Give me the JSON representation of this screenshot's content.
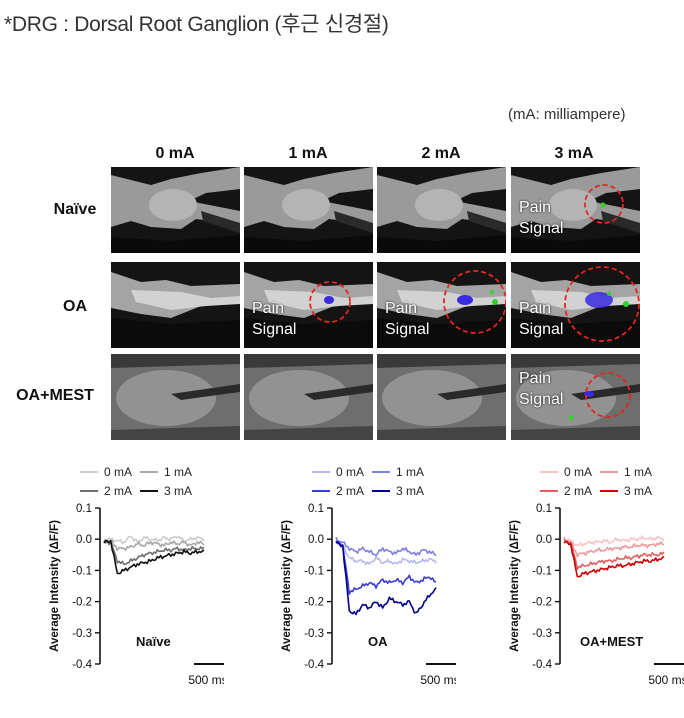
{
  "title": "*DRG : Dorsal Root Ganglion (후근 신경절)",
  "unit_note": "(mA: milliampere)",
  "columns": [
    "0 mA",
    "1 mA",
    "2 mA",
    "3 mA"
  ],
  "rows": [
    "Naïve",
    "OA",
    "OA+MEST"
  ],
  "pain_label": {
    "line1": "Pain",
    "line2": "Signal"
  },
  "pain_signal_cells": [
    {
      "row": 0,
      "col": 3
    },
    {
      "row": 1,
      "col": 1
    },
    {
      "row": 1,
      "col": 2
    },
    {
      "row": 1,
      "col": 3
    },
    {
      "row": 2,
      "col": 3
    }
  ],
  "colors": {
    "naive": [
      "#cccccc",
      "#a8a8a8",
      "#6e6e6e",
      "#111111"
    ],
    "oa": [
      "#b8b8f0",
      "#7f7fe6",
      "#3b3bd0",
      "#00008c"
    ],
    "oa_mest": [
      "#f6c6c6",
      "#ee9a9a",
      "#e06060",
      "#cc0000"
    ],
    "circle": "#e8241f",
    "signal_blue": "#3b2be0",
    "signal_green": "#2fd12f"
  },
  "chart_data": [
    {
      "type": "line",
      "panel_label": "Naïve",
      "ylabel": "Average Intensity (ΔF/F)",
      "ylim": [
        -0.4,
        0.1
      ],
      "yticks": [
        "0.1",
        "0.0",
        "-0.1",
        "-0.2",
        "-0.3",
        "-0.4"
      ],
      "scale_bar": "500 ms",
      "series": [
        {
          "name": "0 mA",
          "values": [
            0.0,
            0.0,
            -0.005,
            -0.01,
            0.01,
            -0.01,
            0.005,
            0.0,
            -0.005,
            0.005,
            0.0,
            0.01,
            -0.005,
            0.0,
            0.005,
            0.0
          ]
        },
        {
          "name": "1 mA",
          "values": [
            -0.01,
            -0.005,
            -0.03,
            -0.03,
            -0.025,
            -0.015,
            -0.02,
            -0.01,
            -0.015,
            -0.02,
            -0.01,
            -0.015,
            -0.01,
            -0.02,
            -0.01,
            -0.015
          ]
        },
        {
          "name": "2 mA",
          "values": [
            -0.01,
            -0.01,
            -0.07,
            -0.08,
            -0.07,
            -0.06,
            -0.05,
            -0.045,
            -0.04,
            -0.035,
            -0.035,
            -0.03,
            -0.035,
            -0.03,
            -0.03,
            -0.03
          ]
        },
        {
          "name": "3 mA",
          "values": [
            -0.01,
            -0.005,
            -0.11,
            -0.1,
            -0.09,
            -0.08,
            -0.075,
            -0.07,
            -0.06,
            -0.055,
            -0.05,
            -0.045,
            -0.04,
            -0.045,
            -0.04,
            -0.04
          ]
        }
      ]
    },
    {
      "type": "line",
      "panel_label": "OA",
      "ylabel": "Average Intensity (ΔF/F)",
      "ylim": [
        -0.4,
        0.1
      ],
      "yticks": [
        "0.1",
        "0.0",
        "-0.1",
        "-0.2",
        "-0.3",
        "-0.4"
      ],
      "scale_bar": "500 ms",
      "series": [
        {
          "name": "0 mA",
          "values": [
            -0.01,
            -0.02,
            -0.06,
            -0.07,
            -0.07,
            -0.08,
            -0.06,
            -0.075,
            -0.07,
            -0.08,
            -0.065,
            -0.07,
            -0.075,
            -0.07,
            -0.065,
            -0.07
          ]
        },
        {
          "name": "1 mA",
          "values": [
            0.0,
            -0.01,
            -0.03,
            -0.04,
            -0.03,
            -0.04,
            -0.05,
            -0.03,
            -0.04,
            -0.045,
            -0.03,
            -0.04,
            -0.05,
            -0.035,
            -0.04,
            -0.05
          ]
        },
        {
          "name": "2 mA",
          "values": [
            -0.01,
            -0.02,
            -0.17,
            -0.16,
            -0.15,
            -0.14,
            -0.15,
            -0.13,
            -0.14,
            -0.13,
            -0.14,
            -0.12,
            -0.14,
            -0.13,
            -0.12,
            -0.14
          ]
        },
        {
          "name": "3 mA",
          "values": [
            -0.01,
            -0.02,
            -0.23,
            -0.24,
            -0.21,
            -0.22,
            -0.2,
            -0.22,
            -0.19,
            -0.2,
            -0.21,
            -0.2,
            -0.24,
            -0.21,
            -0.18,
            -0.16
          ]
        }
      ]
    },
    {
      "type": "line",
      "panel_label": "OA+MEST",
      "ylabel": "Average Intensity (ΔF/F)",
      "ylim": [
        -0.4,
        0.1
      ],
      "yticks": [
        "0.1",
        "0.0",
        "-0.1",
        "-0.2",
        "-0.3",
        "-0.4"
      ],
      "scale_bar": "500 ms",
      "series": [
        {
          "name": "0 mA",
          "values": [
            0.0,
            -0.005,
            -0.02,
            -0.015,
            -0.01,
            -0.01,
            -0.005,
            -0.01,
            0.0,
            -0.005,
            0.0,
            0.0,
            0.005,
            0.0,
            0.005,
            0.0
          ]
        },
        {
          "name": "1 mA",
          "values": [
            0.0,
            -0.01,
            -0.05,
            -0.045,
            -0.04,
            -0.035,
            -0.035,
            -0.03,
            -0.03,
            -0.025,
            -0.025,
            -0.02,
            -0.02,
            -0.02,
            -0.015,
            -0.015
          ]
        },
        {
          "name": "2 mA",
          "values": [
            -0.005,
            -0.01,
            -0.09,
            -0.085,
            -0.08,
            -0.075,
            -0.07,
            -0.07,
            -0.065,
            -0.06,
            -0.06,
            -0.055,
            -0.05,
            -0.05,
            -0.05,
            -0.045
          ]
        },
        {
          "name": "3 mA",
          "values": [
            -0.01,
            -0.015,
            -0.12,
            -0.11,
            -0.105,
            -0.1,
            -0.095,
            -0.09,
            -0.085,
            -0.085,
            -0.08,
            -0.075,
            -0.07,
            -0.07,
            -0.065,
            -0.06
          ]
        }
      ]
    }
  ]
}
